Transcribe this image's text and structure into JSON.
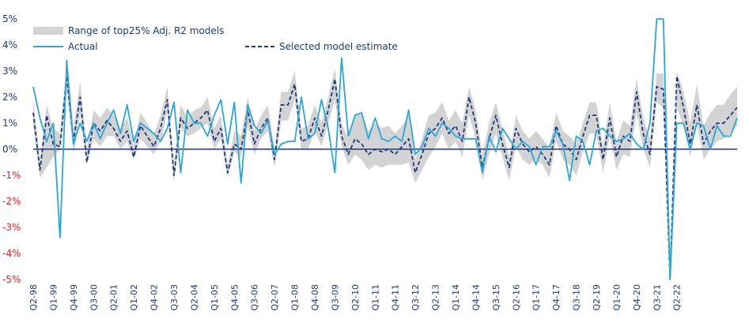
{
  "chart_data": {
    "type": "line",
    "title": "",
    "xlabel": "",
    "ylabel": "",
    "ylim": [
      -5,
      5
    ],
    "yticks": [
      5,
      4,
      3,
      2,
      1,
      0,
      -1,
      -2,
      -3,
      -4,
      -5
    ],
    "ytick_labels": [
      "5%",
      "4%",
      "3%",
      "2%",
      "1%",
      "0%",
      "-1%",
      "-2%",
      "-3%",
      "-4%",
      "-5%"
    ],
    "x_tick_labels": [
      "Q2-98",
      "Q1-99",
      "Q4-99",
      "Q3-00",
      "Q2-01",
      "Q1-02",
      "Q4-02",
      "Q3-03",
      "Q2-04",
      "Q1-05",
      "Q4-05",
      "Q3-06",
      "Q2-07",
      "Q1-08",
      "Q4-08",
      "Q3-09",
      "Q2-10",
      "Q1-11",
      "Q4-11",
      "Q3-12",
      "Q2-13",
      "Q1-14",
      "Q4-14",
      "Q3-15",
      "Q2-16",
      "Q1-17",
      "Q4-17",
      "Q3-18",
      "Q2-19",
      "Q1-20",
      "Q4-20",
      "Q3-21",
      "Q2-22"
    ],
    "legend": {
      "placement": "top-left",
      "entries": [
        "Range of top25% Adj. R2 models",
        "Actual",
        "Selected model estimate"
      ]
    },
    "colors": {
      "actual": "#2aa7d8",
      "estimate": "#1f3a7a",
      "band": "#d3d3d3",
      "zero_line": "#1f3a7a",
      "positive_tick": "#1f3a7a",
      "negative_tick": "#e41f1f"
    },
    "series": [
      {
        "name": "Actual",
        "values": [
          2.4,
          1.2,
          0.3,
          1.0,
          -3.4,
          3.4,
          0.2,
          1.0,
          0.3,
          1.0,
          0.4,
          1.0,
          1.5,
          0.6,
          1.7,
          0.3,
          1.0,
          0.8,
          0.6,
          0.3,
          0.8,
          1.8,
          -0.9,
          1.5,
          1.0,
          1.0,
          0.5,
          1.3,
          1.9,
          0.2,
          1.8,
          -1.3,
          1.7,
          0.9,
          0.6,
          1.1,
          -0.2,
          0.2,
          0.3,
          0.3,
          2.0,
          0.4,
          0.6,
          1.9,
          0.8,
          -0.9,
          3.5,
          0.5,
          1.3,
          1.4,
          0.4,
          1.2,
          0.4,
          0.3,
          0.5,
          0.3,
          1.5,
          -0.2,
          0.1,
          0.8,
          0.5,
          1.0,
          0.8,
          0.5,
          0.4,
          0.4,
          0.4,
          -0.9,
          0.5,
          -0.1,
          0.8,
          0.4,
          0.0,
          0.3,
          0.1,
          -0.6,
          0.1,
          0.1,
          0.7,
          0.2,
          -1.2,
          0.5,
          0.3,
          -0.6,
          0.7,
          0.8,
          0.5,
          0.3,
          0.4,
          0.6,
          0.2,
          0.0,
          1.0,
          5.0,
          5.0,
          -5.0,
          1.0,
          1.0,
          0.0,
          1.0,
          0.9,
          0.0,
          0.9,
          0.5,
          0.5,
          1.2
        ]
      },
      {
        "name": "Selected model estimate",
        "values": [
          1.4,
          -0.8,
          1.3,
          0.2,
          0.1,
          2.8,
          0.3,
          2.0,
          -0.5,
          1.0,
          0.7,
          1.1,
          0.8,
          0.3,
          0.7,
          -0.3,
          0.9,
          0.5,
          0.1,
          0.8,
          1.9,
          -1.0,
          1.2,
          0.8,
          1.0,
          1.2,
          1.5,
          0.3,
          0.8,
          -0.9,
          0.2,
          0.0,
          1.5,
          0.2,
          0.8,
          1.2,
          -0.4,
          1.7,
          1.7,
          2.5,
          0.3,
          0.4,
          1.2,
          0.5,
          1.5,
          2.7,
          0.5,
          -0.2,
          0.4,
          0.2,
          -0.2,
          0.0,
          -0.1,
          0.0,
          -0.2,
          0.1,
          0.4,
          -0.9,
          -0.2,
          0.6,
          0.8,
          1.2,
          0.6,
          0.9,
          0.3,
          2.0,
          1.0,
          -0.7,
          0.4,
          1.3,
          0.2,
          -0.7,
          0.8,
          0.2,
          -0.1,
          0.1,
          -0.2,
          -0.6,
          0.9,
          0.2,
          0.0,
          -0.4,
          0.5,
          1.3,
          1.3,
          -0.4,
          1.2,
          -0.3,
          0.5,
          0.3,
          2.2,
          0.6,
          -0.2,
          2.4,
          2.3,
          -5.0,
          2.8,
          1.6,
          0.2,
          1.7,
          0.2,
          0.7,
          1.0,
          1.0,
          1.3,
          1.6
        ]
      }
    ],
    "band": {
      "name": "Range of top25% Adj. R2 models",
      "lower": [
        0.9,
        -1.1,
        -0.7,
        -0.3,
        0.0,
        2.3,
        -0.2,
        1.3,
        -0.6,
        0.4,
        0.1,
        0.5,
        0.5,
        0.0,
        0.3,
        -0.4,
        0.4,
        0.1,
        -0.2,
        0.3,
        1.4,
        -1.3,
        0.8,
        0.5,
        0.6,
        0.8,
        1.0,
        0.0,
        0.4,
        -1.1,
        -0.1,
        -0.3,
        0.9,
        -0.2,
        0.4,
        0.7,
        -0.7,
        1.1,
        1.1,
        1.9,
        0.0,
        0.0,
        0.7,
        0.1,
        1.0,
        1.9,
        0.1,
        -0.6,
        -0.2,
        -0.4,
        -0.8,
        -0.6,
        -0.7,
        -0.6,
        -0.6,
        -0.6,
        -0.5,
        -1.3,
        -0.8,
        -0.3,
        0.1,
        0.6,
        0.0,
        0.3,
        -0.3,
        1.3,
        0.4,
        -1.2,
        -0.2,
        0.6,
        -0.3,
        -1.2,
        0.1,
        -0.4,
        -0.6,
        -0.4,
        -0.6,
        -1.1,
        0.3,
        -0.4,
        -0.6,
        -1.0,
        -0.1,
        0.6,
        0.6,
        -0.9,
        0.5,
        -0.8,
        -0.2,
        -0.3,
        1.4,
        0.0,
        -0.7,
        1.8,
        1.6,
        -5.0,
        1.6,
        0.9,
        -0.3,
        1.0,
        -0.4,
        0.0,
        0.3,
        0.4,
        0.6,
        0.9
      ],
      "upper": [
        1.9,
        -0.4,
        1.7,
        0.8,
        0.6,
        3.3,
        0.8,
        2.6,
        0.0,
        1.5,
        1.2,
        1.6,
        1.3,
        0.8,
        1.2,
        0.2,
        1.4,
        1.0,
        0.6,
        1.3,
        2.4,
        -0.6,
        1.7,
        1.2,
        1.5,
        1.6,
        2.0,
        0.8,
        1.3,
        -0.6,
        0.7,
        0.5,
        2.0,
        0.7,
        1.3,
        1.7,
        0.0,
        2.2,
        2.2,
        3.0,
        0.8,
        0.9,
        1.7,
        1.0,
        2.0,
        3.1,
        1.0,
        0.4,
        1.4,
        1.3,
        0.7,
        1.0,
        0.8,
        0.9,
        0.6,
        0.9,
        1.3,
        -0.4,
        0.4,
        1.3,
        1.4,
        1.8,
        1.1,
        1.5,
        1.0,
        2.4,
        1.5,
        -0.2,
        1.0,
        1.8,
        0.8,
        -0.3,
        1.3,
        0.7,
        0.4,
        0.7,
        0.4,
        0.0,
        1.4,
        0.7,
        0.5,
        0.2,
        1.0,
        1.8,
        1.8,
        0.1,
        1.8,
        0.3,
        1.1,
        0.9,
        2.7,
        1.2,
        0.4,
        2.9,
        2.9,
        -4.8,
        3.0,
        2.2,
        1.0,
        2.5,
        0.9,
        1.4,
        1.7,
        1.7,
        2.1,
        2.4
      ]
    }
  }
}
